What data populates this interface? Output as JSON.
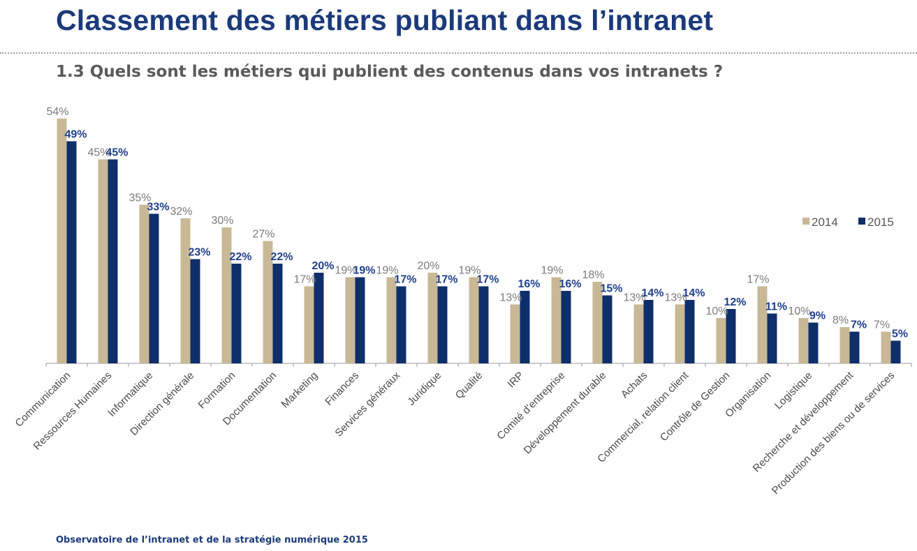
{
  "header": {
    "title": "Classement des métiers publiant dans l’intranet",
    "subtitle": "1.3 Quels sont les métiers qui publient des contenus dans vos intranets ?"
  },
  "footer": {
    "text": "Observatoire de l’intranet et de la stratégie numérique 2015"
  },
  "colors": {
    "s2014": "#c8b896",
    "s2015": "#0f2f6b",
    "title": "#1b3a7a",
    "axis": "#9a9a9a"
  },
  "chart_data": {
    "type": "bar",
    "title": "1.3 Quels sont les métiers qui publient des contenus dans vos intranets ?",
    "xlabel": "",
    "ylabel": "",
    "ylim": [
      0,
      60
    ],
    "grid": false,
    "legend_position": "right",
    "categories": [
      "Communication",
      "Ressources Humaines",
      "Informatique",
      "Direction générale",
      "Formation",
      "Documentation",
      "Marketing",
      "Finances",
      "Services généraux",
      "Juridique",
      "Qualité",
      "IRP",
      "Comité d’entreprise",
      "Développement durable",
      "Achats",
      "Commercial, relation client",
      "Contrôle de Gestion",
      "Organisation",
      "Logistique",
      "Recherche et développement",
      "Production des biens ou de services"
    ],
    "series": [
      {
        "name": "2014",
        "values": [
          54,
          45,
          35,
          32,
          30,
          27,
          17,
          19,
          19,
          20,
          19,
          13,
          19,
          18,
          13,
          13,
          10,
          17,
          10,
          8,
          7
        ],
        "labels": [
          "54%",
          "45%",
          "35%",
          "32%",
          "30%",
          "27%",
          "17%",
          "19%",
          "19%",
          "20%",
          "19%",
          "13%",
          "19%",
          "18%",
          "13%",
          "13%",
          "10%",
          "17%",
          "10%",
          "8%",
          "7%"
        ]
      },
      {
        "name": "2015",
        "values": [
          49,
          45,
          33,
          23,
          22,
          22,
          20,
          19,
          17,
          17,
          17,
          16,
          16,
          15,
          14,
          14,
          12,
          11,
          9,
          7,
          5
        ],
        "labels": [
          "49%",
          "45%",
          "33%",
          "23%",
          "22%",
          "22%",
          "20%",
          "19%",
          "17%",
          "17%",
          "17%",
          "16%",
          "16%",
          "15%",
          "14%",
          "14%",
          "12%",
          "11%",
          "9%",
          "7%",
          "5%"
        ]
      }
    ]
  }
}
